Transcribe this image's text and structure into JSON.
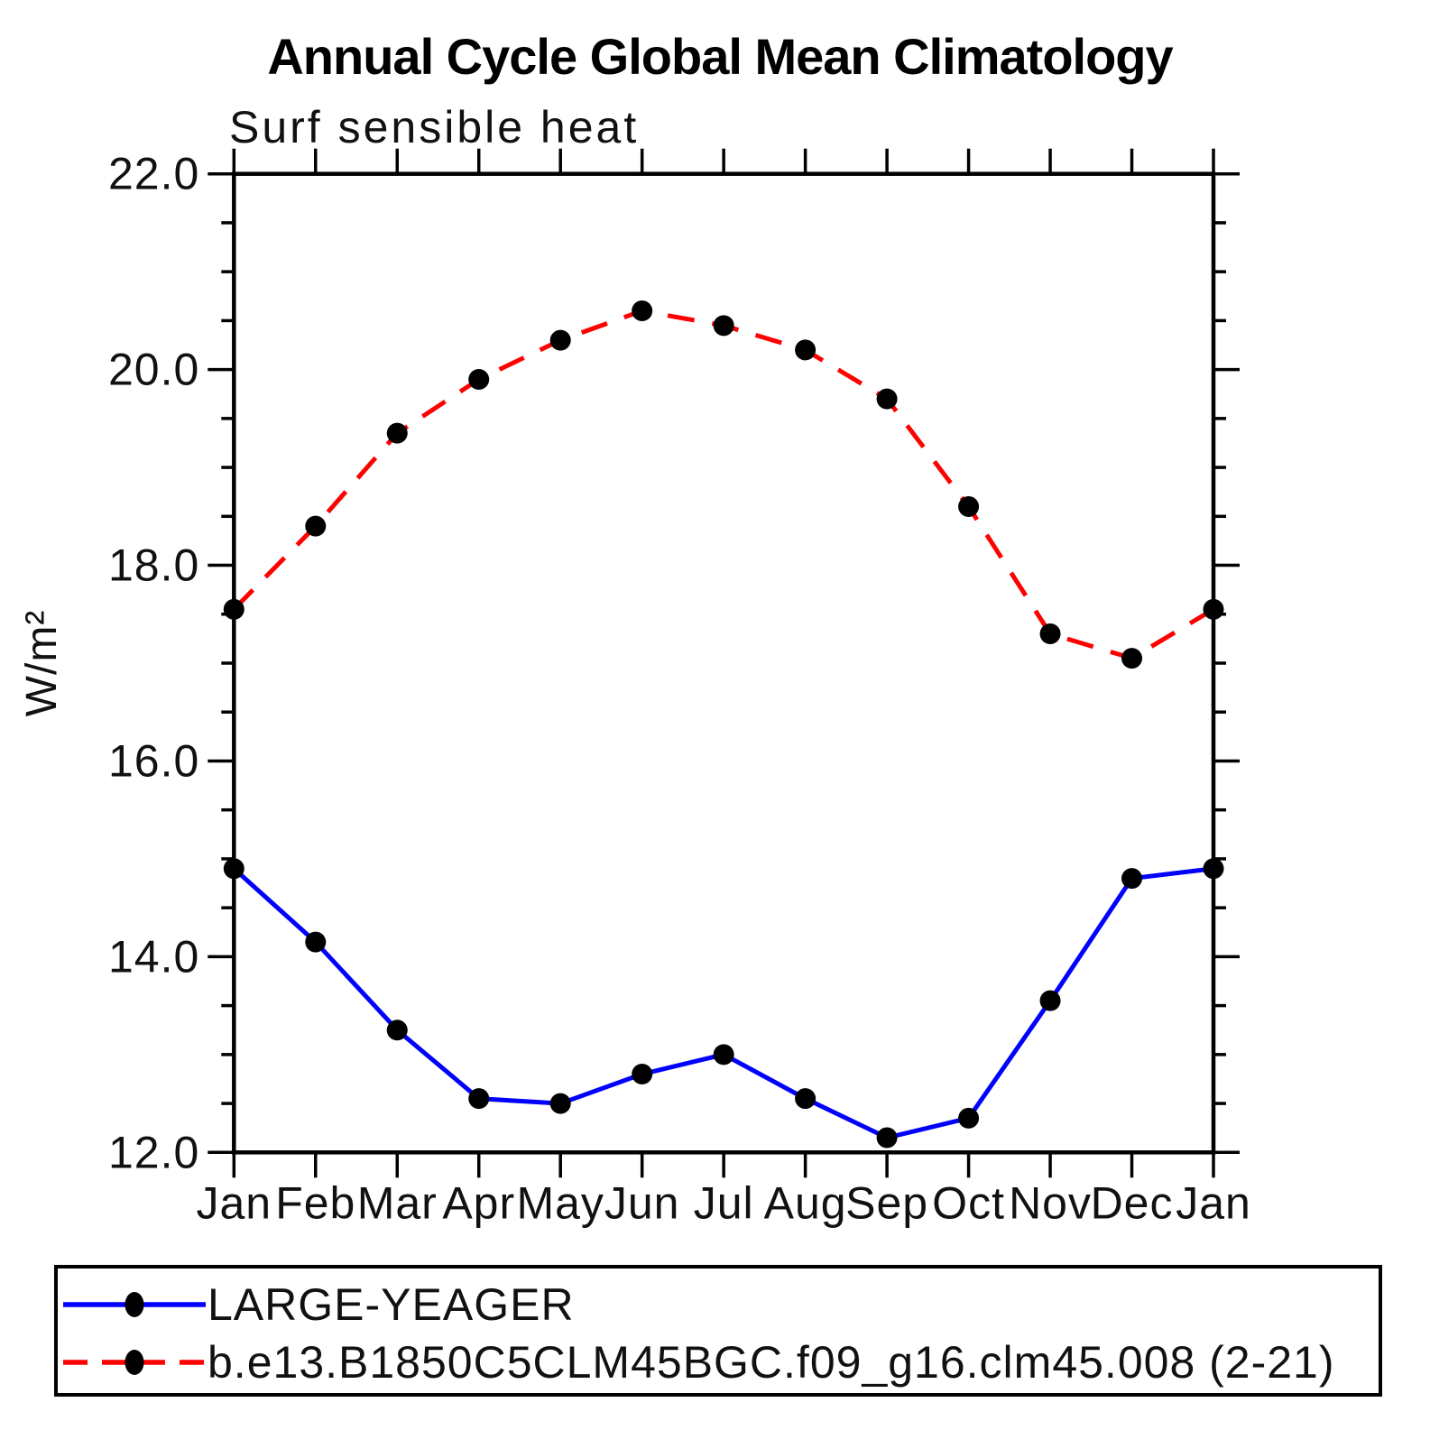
{
  "chart_data": {
    "type": "line",
    "title": "Annual Cycle Global Mean Climatology",
    "subtitle": "Surf sensible heat",
    "ylabel": "W/m²",
    "x_categories": [
      "Jan",
      "Feb",
      "Mar",
      "Apr",
      "May",
      "Jun",
      "Jul",
      "Aug",
      "Sep",
      "Oct",
      "Nov",
      "Dec",
      "Jan"
    ],
    "ylim": [
      12.0,
      22.0
    ],
    "ytick_major": [
      22.0,
      20.0,
      18.0,
      16.0,
      14.0,
      12.0
    ],
    "ytick_labels": [
      "22.0",
      "20.0",
      "18.0",
      "16.0",
      "14.0",
      "12.0"
    ],
    "ytick_minor_step": 0.5,
    "grid": false,
    "legend_position": "bottom",
    "axis_color": "#000000",
    "marker_color": "#000000",
    "series": [
      {
        "name": "LARGE-YEAGER",
        "color": "#0000ff",
        "style": "solid",
        "marker": "circle",
        "values": [
          14.9,
          14.15,
          13.25,
          12.55,
          12.5,
          12.8,
          13.0,
          12.55,
          12.15,
          12.35,
          13.55,
          14.8,
          14.9
        ]
      },
      {
        "name": "b.e13.B1850C5CLM45BGC.f09_g16.clm45.008 (2-21)",
        "color": "#ff0000",
        "style": "dashed",
        "marker": "circle",
        "values": [
          17.55,
          18.4,
          19.35,
          19.9,
          20.3,
          20.6,
          20.45,
          20.2,
          19.7,
          18.6,
          17.3,
          17.05,
          17.55
        ]
      }
    ]
  }
}
